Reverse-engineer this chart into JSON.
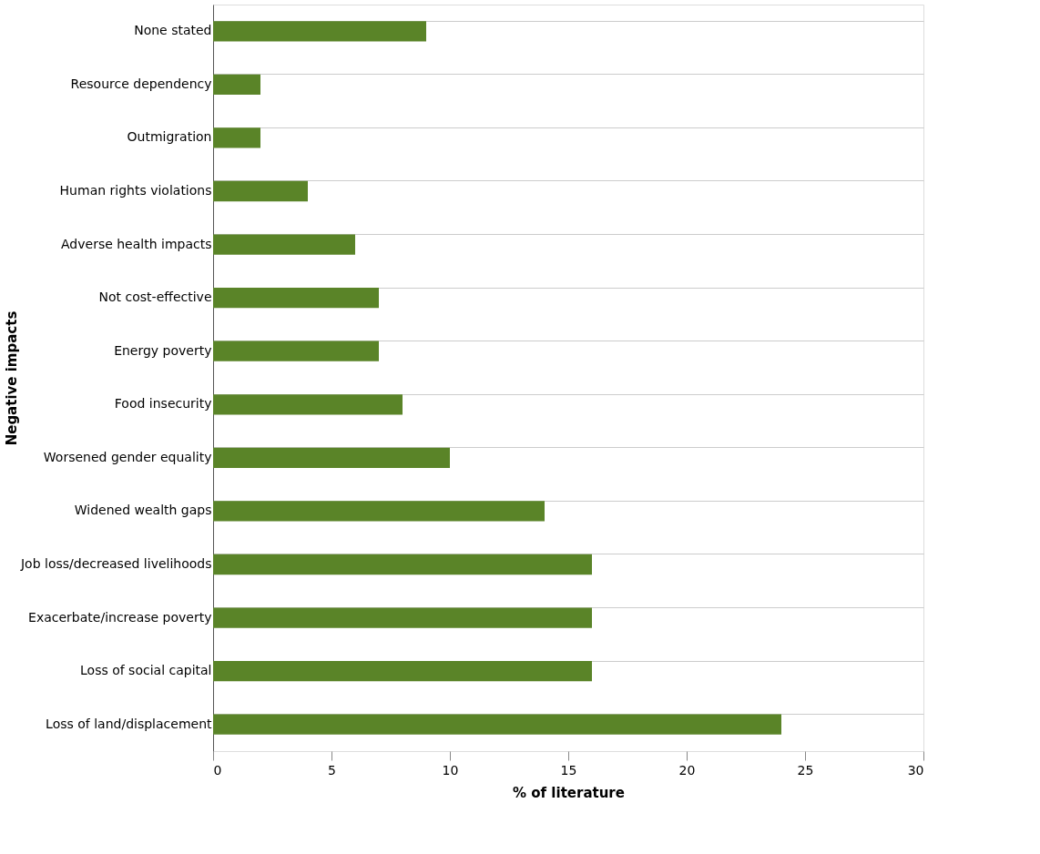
{
  "chart_data": {
    "type": "bar",
    "orientation": "horizontal",
    "xlabel": "% of literature",
    "ylabel": "Negative impacts",
    "categories": [
      "None stated",
      "Resource dependency",
      "Outmigration",
      "Human rights violations",
      "Adverse health impacts",
      "Not cost-effective",
      "Energy poverty",
      "Food insecurity",
      "Worsened gender equality",
      "Widened wealth gaps",
      "Job loss/decreased livelihoods",
      "Exacerbate/increase poverty",
      "Loss of social capital",
      "Loss of land/displacement"
    ],
    "values": [
      9,
      2,
      2,
      4,
      6,
      7,
      7,
      8,
      10,
      14,
      16,
      16,
      16,
      24
    ],
    "color": "#5a8428",
    "xlim": [
      0,
      30
    ],
    "xticks": [
      0,
      5,
      10,
      15,
      20,
      25,
      30
    ],
    "grid": "y"
  }
}
